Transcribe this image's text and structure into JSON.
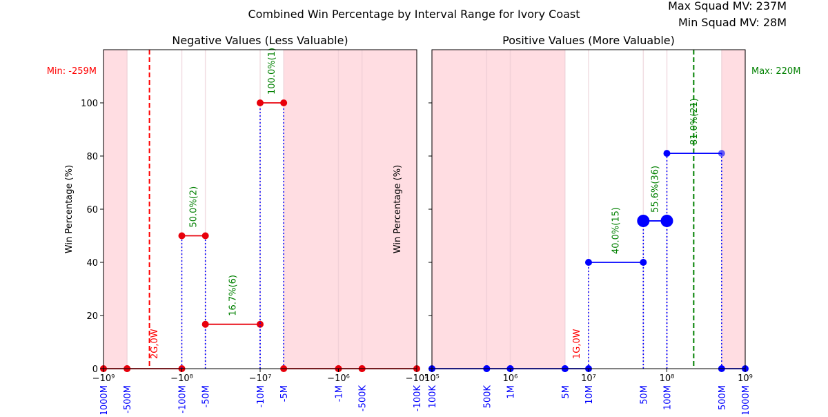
{
  "suptitle": "Combined Win Percentage by Interval Range for Ivory Coast",
  "info": {
    "max_squad_mv": "Max Squad MV: 237M",
    "min_squad_mv": "Min Squad MV: 28M"
  },
  "colors": {
    "shade": "#ffdde2",
    "neg_line": "#e8000b",
    "pos_line": "#0000ff",
    "annotation": "#008000",
    "min_label": "#ff0000",
    "max_label": "#008000",
    "tick_label": "#0000ff"
  },
  "chart_data": [
    {
      "type": "line",
      "title": "Negative Values (Less Valuable)",
      "ylabel": "Win Percentage (%)",
      "xscale": "symlog (negative, log-scaled magnitude)",
      "xlim": [
        -1000000000,
        -100000
      ],
      "ylim": [
        0,
        100
      ],
      "xticks": [
        {
          "value": -1000000000,
          "label": "−10⁹"
        },
        {
          "value": -100000000,
          "label": "−10⁸"
        },
        {
          "value": -10000000,
          "label": "−10⁷"
        },
        {
          "value": -1000000,
          "label": "−10⁶"
        },
        {
          "value": -100000,
          "label": "−10⁵"
        }
      ],
      "yticks": [
        0,
        20,
        40,
        60,
        80,
        100
      ],
      "boundary_labels": [
        {
          "value": -1000000000,
          "label": "-1000M"
        },
        {
          "value": -500000000,
          "label": "-500M"
        },
        {
          "value": -100000000,
          "label": "-100M"
        },
        {
          "value": -50000000,
          "label": "-50M"
        },
        {
          "value": -10000000,
          "label": "-10M"
        },
        {
          "value": -5000000,
          "label": "-5M"
        },
        {
          "value": -1000000,
          "label": "-1M"
        },
        {
          "value": -500000,
          "label": "-500K"
        },
        {
          "value": -100000,
          "label": "-100K"
        }
      ],
      "shaded_ranges": [
        [
          -1000000000,
          -500000000
        ],
        [
          -5000000,
          -100000
        ]
      ],
      "reference_line": {
        "value": -259000000,
        "label": "Min: -259M",
        "color": "#ff0000"
      },
      "segments": [
        {
          "x": [
            -1000000000,
            -500000000
          ],
          "y": 0,
          "annotation": ""
        },
        {
          "x": [
            -500000000,
            -100000000
          ],
          "y": 0,
          "annotation": "2G,0W"
        },
        {
          "x": [
            -100000000,
            -50000000
          ],
          "y": 50,
          "annotation": "50.0%(2)"
        },
        {
          "x": [
            -50000000,
            -10000000
          ],
          "y": 16.7,
          "annotation": "16.7%(6)"
        },
        {
          "x": [
            -10000000,
            -5000000
          ],
          "y": 100,
          "annotation": "100.0%(1)"
        },
        {
          "x": [
            -5000000,
            -1000000
          ],
          "y": 0,
          "annotation": ""
        },
        {
          "x": [
            -1000000,
            -500000
          ],
          "y": 0,
          "annotation": ""
        },
        {
          "x": [
            -500000,
            -100000
          ],
          "y": 0,
          "annotation": ""
        }
      ]
    },
    {
      "type": "line",
      "title": "Positive Values (More Valuable)",
      "ylabel": "Win Percentage (%)",
      "xscale": "log",
      "xlim": [
        100000,
        1000000000
      ],
      "ylim": [
        0,
        100
      ],
      "xticks": [
        {
          "value": 100000,
          "label": "10⁵"
        },
        {
          "value": 1000000,
          "label": "10⁶"
        },
        {
          "value": 10000000,
          "label": "10⁷"
        },
        {
          "value": 100000000,
          "label": "10⁸"
        },
        {
          "value": 1000000000,
          "label": "10⁹"
        }
      ],
      "yticks": [
        0,
        20,
        40,
        60,
        80,
        100
      ],
      "boundary_labels": [
        {
          "value": 100000,
          "label": "100K"
        },
        {
          "value": 500000,
          "label": "500K"
        },
        {
          "value": 1000000,
          "label": "1M"
        },
        {
          "value": 5000000,
          "label": "5M"
        },
        {
          "value": 10000000,
          "label": "10M"
        },
        {
          "value": 50000000,
          "label": "50M"
        },
        {
          "value": 100000000,
          "label": "100M"
        },
        {
          "value": 500000000,
          "label": "500M"
        },
        {
          "value": 1000000000,
          "label": "1000M"
        }
      ],
      "shaded_ranges": [
        [
          100000,
          5000000
        ],
        [
          500000000,
          1000000000
        ]
      ],
      "reference_line": {
        "value": 220000000,
        "label": "Max: 220M",
        "color": "#008000"
      },
      "segments": [
        {
          "x": [
            100000,
            500000
          ],
          "y": 0,
          "annotation": ""
        },
        {
          "x": [
            500000,
            1000000
          ],
          "y": 0,
          "annotation": ""
        },
        {
          "x": [
            1000000,
            5000000
          ],
          "y": 0,
          "annotation": ""
        },
        {
          "x": [
            5000000,
            10000000
          ],
          "y": 0,
          "annotation": "1G,0W"
        },
        {
          "x": [
            10000000,
            50000000
          ],
          "y": 40,
          "annotation": "40.0%(15)"
        },
        {
          "x": [
            50000000,
            100000000
          ],
          "y": 55.6,
          "annotation": "55.6%(36)"
        },
        {
          "x": [
            100000000,
            500000000
          ],
          "y": 81,
          "annotation": "81.0%(21)"
        },
        {
          "x": [
            500000000,
            1000000000
          ],
          "y": 0,
          "annotation": ""
        }
      ]
    }
  ]
}
